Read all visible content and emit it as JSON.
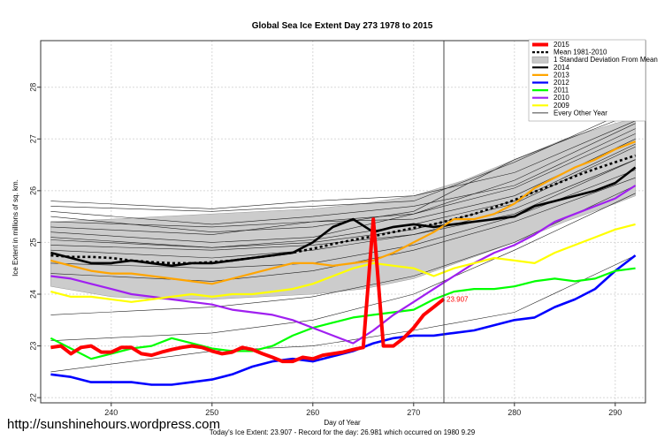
{
  "chart_data": {
    "type": "line",
    "title": "Global Sea Ice Extent Day 273 1978 to 2015",
    "xlabel": "Day of Year",
    "ylabel": "Ice Extent in millions of sq. km.",
    "xlim": [
      233,
      293
    ],
    "ylim": [
      21.9,
      28.9
    ],
    "xticks": [
      240,
      250,
      260,
      270,
      280,
      290
    ],
    "yticks": [
      22,
      23,
      24,
      25,
      26,
      27,
      28
    ],
    "grid": true,
    "legend_position": "top-right",
    "marker_day": 273,
    "annotation": "23.907",
    "caption": "Today's Ice Extent: 23.907  -  Record for the day: 26.981 which occurred on 1980 9.29",
    "watermark": "http://sunshinehours.wordpress.com",
    "legend": [
      {
        "label": "2015",
        "color": "#ff0000"
      },
      {
        "label": "Mean 1981-2010",
        "color": "#000000"
      },
      {
        "label": "1 Standard Deviation From Mean",
        "color": "#c8c8c8"
      },
      {
        "label": "2014",
        "color": "#000000"
      },
      {
        "label": "2013",
        "color": "#ffa500"
      },
      {
        "label": "2012",
        "color": "#0000ff"
      },
      {
        "label": "2011",
        "color": "#00ff00"
      },
      {
        "label": "2010",
        "color": "#a020f0"
      },
      {
        "label": "2009",
        "color": "#ffff00"
      },
      {
        "label": "Every Other Year",
        "color": "#000000"
      }
    ],
    "std_band": {
      "x": [
        234,
        240,
        245,
        250,
        255,
        260,
        265,
        270,
        275,
        280,
        285,
        290,
        292
      ],
      "upper": [
        25.4,
        25.45,
        25.5,
        25.55,
        25.6,
        25.65,
        25.75,
        25.9,
        26.2,
        26.6,
        27.0,
        27.3,
        27.4
      ],
      "lower": [
        24.15,
        23.95,
        23.9,
        23.9,
        23.95,
        24.0,
        24.1,
        24.3,
        24.65,
        25.0,
        25.4,
        25.75,
        25.9
      ]
    },
    "series": [
      {
        "name": "Mean 1981-2010",
        "color": "#000000",
        "style": "dotted",
        "x": [
          234,
          236,
          238,
          240,
          242,
          244,
          246,
          248,
          250,
          252,
          254,
          256,
          258,
          260,
          262,
          264,
          266,
          268,
          270,
          272,
          274,
          276,
          278,
          280,
          282,
          284,
          286,
          288,
          290,
          292
        ],
        "y": [
          24.75,
          24.72,
          24.72,
          24.7,
          24.65,
          24.62,
          24.6,
          24.6,
          24.62,
          24.65,
          24.7,
          24.75,
          24.8,
          24.88,
          24.97,
          25.05,
          25.12,
          25.2,
          25.28,
          25.35,
          25.45,
          25.55,
          25.68,
          25.82,
          25.98,
          26.12,
          26.28,
          26.42,
          26.55,
          26.68
        ]
      },
      {
        "name": "2014",
        "color": "#000000",
        "style": "solid",
        "x": [
          234,
          236,
          238,
          240,
          242,
          244,
          246,
          248,
          250,
          252,
          254,
          256,
          258,
          260,
          262,
          264,
          266,
          268,
          270,
          272,
          274,
          276,
          278,
          280,
          282,
          284,
          286,
          288,
          290,
          292
        ],
        "y": [
          24.8,
          24.7,
          24.6,
          24.6,
          24.65,
          24.6,
          24.55,
          24.6,
          24.6,
          24.65,
          24.7,
          24.75,
          24.8,
          25.0,
          25.3,
          25.45,
          25.2,
          25.3,
          25.35,
          25.3,
          25.35,
          25.4,
          25.45,
          25.5,
          25.7,
          25.8,
          25.9,
          26.0,
          26.15,
          26.45
        ]
      },
      {
        "name": "2013",
        "color": "#ffa500",
        "style": "solid",
        "x": [
          234,
          236,
          238,
          240,
          242,
          244,
          246,
          248,
          250,
          252,
          254,
          256,
          258,
          260,
          262,
          264,
          266,
          268,
          270,
          272,
          274,
          276,
          278,
          280,
          282,
          284,
          286,
          288,
          290,
          292
        ],
        "y": [
          24.65,
          24.55,
          24.45,
          24.4,
          24.4,
          24.35,
          24.3,
          24.25,
          24.2,
          24.3,
          24.4,
          24.5,
          24.6,
          24.6,
          24.55,
          24.6,
          24.65,
          24.8,
          25.0,
          25.2,
          25.45,
          25.45,
          25.55,
          25.75,
          26.05,
          26.25,
          26.45,
          26.6,
          26.8,
          26.95
        ]
      },
      {
        "name": "2012",
        "color": "#0000ff",
        "style": "solid",
        "x": [
          234,
          236,
          238,
          240,
          242,
          244,
          246,
          248,
          250,
          252,
          254,
          256,
          258,
          260,
          262,
          264,
          266,
          268,
          270,
          272,
          274,
          276,
          278,
          280,
          282,
          284,
          286,
          288,
          290,
          292
        ],
        "y": [
          22.45,
          22.4,
          22.3,
          22.3,
          22.3,
          22.25,
          22.25,
          22.3,
          22.35,
          22.45,
          22.6,
          22.7,
          22.75,
          22.7,
          22.8,
          22.9,
          23.05,
          23.15,
          23.2,
          23.2,
          23.25,
          23.3,
          23.4,
          23.5,
          23.55,
          23.75,
          23.9,
          24.1,
          24.45,
          24.75
        ]
      },
      {
        "name": "2011",
        "color": "#00ff00",
        "style": "solid",
        "x": [
          234,
          236,
          238,
          240,
          242,
          244,
          246,
          248,
          250,
          252,
          254,
          256,
          258,
          260,
          262,
          264,
          266,
          268,
          270,
          272,
          274,
          276,
          278,
          280,
          282,
          284,
          286,
          288,
          290,
          292
        ],
        "y": [
          23.15,
          22.95,
          22.75,
          22.85,
          22.95,
          23.0,
          23.15,
          23.05,
          22.95,
          22.9,
          22.9,
          23.0,
          23.2,
          23.35,
          23.45,
          23.55,
          23.6,
          23.65,
          23.7,
          23.9,
          24.05,
          24.1,
          24.1,
          24.15,
          24.25,
          24.3,
          24.25,
          24.3,
          24.45,
          24.5
        ]
      },
      {
        "name": "2010",
        "color": "#a020f0",
        "style": "solid",
        "x": [
          234,
          236,
          238,
          240,
          242,
          244,
          246,
          248,
          250,
          252,
          254,
          256,
          258,
          260,
          262,
          264,
          266,
          268,
          270,
          272,
          274,
          276,
          278,
          280,
          282,
          284,
          286,
          288,
          290,
          292
        ],
        "y": [
          24.35,
          24.3,
          24.2,
          24.1,
          24.0,
          23.95,
          23.9,
          23.85,
          23.8,
          23.7,
          23.65,
          23.6,
          23.5,
          23.35,
          23.2,
          23.05,
          23.3,
          23.6,
          23.85,
          24.1,
          24.35,
          24.6,
          24.8,
          24.95,
          25.15,
          25.4,
          25.55,
          25.7,
          25.85,
          26.1
        ]
      },
      {
        "name": "2009",
        "color": "#ffff00",
        "style": "solid",
        "x": [
          234,
          236,
          238,
          240,
          242,
          244,
          246,
          248,
          250,
          252,
          254,
          256,
          258,
          260,
          262,
          264,
          266,
          268,
          270,
          272,
          274,
          276,
          278,
          280,
          282,
          284,
          286,
          288,
          290,
          292
        ],
        "y": [
          24.05,
          23.95,
          23.95,
          23.9,
          23.85,
          23.9,
          23.95,
          24.0,
          23.95,
          24.0,
          24.0,
          24.05,
          24.1,
          24.2,
          24.35,
          24.5,
          24.6,
          24.55,
          24.5,
          24.35,
          24.5,
          24.6,
          24.7,
          24.65,
          24.6,
          24.8,
          24.95,
          25.1,
          25.25,
          25.35
        ]
      },
      {
        "name": "2015",
        "color": "#ff0000",
        "style": "solid",
        "x": [
          234,
          235,
          236,
          237,
          238,
          239,
          240,
          241,
          242,
          243,
          244,
          245,
          246,
          247,
          248,
          249,
          250,
          251,
          252,
          253,
          254,
          255,
          256,
          257,
          258,
          259,
          260,
          261,
          262,
          263,
          264,
          265,
          266,
          267,
          268,
          269,
          270,
          271,
          272,
          273
        ],
        "y": [
          22.97,
          23.0,
          22.85,
          22.97,
          23.0,
          22.88,
          22.88,
          22.97,
          22.97,
          22.85,
          22.82,
          22.88,
          22.93,
          22.97,
          23.0,
          22.97,
          22.9,
          22.85,
          22.88,
          22.97,
          22.93,
          22.85,
          22.78,
          22.7,
          22.7,
          22.78,
          22.75,
          22.82,
          22.85,
          22.88,
          22.93,
          22.97,
          25.45,
          23.0,
          23.0,
          23.15,
          23.35,
          23.6,
          23.75,
          23.907
        ]
      }
    ],
    "other_years": [
      {
        "x": [
          234,
          250,
          260,
          270,
          280,
          292
        ],
        "y": [
          25.8,
          25.65,
          25.8,
          25.9,
          26.35,
          27.35
        ]
      },
      {
        "x": [
          234,
          250,
          260,
          270,
          280,
          292
        ],
        "y": [
          25.7,
          25.6,
          25.7,
          25.8,
          26.55,
          27.6
        ]
      },
      {
        "x": [
          234,
          250,
          260,
          270,
          280,
          292
        ],
        "y": [
          25.6,
          25.35,
          25.5,
          25.7,
          26.1,
          27.2
        ]
      },
      {
        "x": [
          234,
          250,
          260,
          270,
          280,
          292
        ],
        "y": [
          25.5,
          25.2,
          25.3,
          25.6,
          26.6,
          27.5
        ]
      },
      {
        "x": [
          234,
          250,
          260,
          270,
          280,
          292
        ],
        "y": [
          25.3,
          25.15,
          25.4,
          25.45,
          25.9,
          27.0
        ]
      },
      {
        "x": [
          234,
          250,
          260,
          270,
          280,
          292
        ],
        "y": [
          25.2,
          25.0,
          25.1,
          25.55,
          26.2,
          27.3
        ]
      },
      {
        "x": [
          234,
          250,
          260,
          270,
          280,
          292
        ],
        "y": [
          25.1,
          24.9,
          25.0,
          25.25,
          25.75,
          26.85
        ]
      },
      {
        "x": [
          234,
          250,
          260,
          270,
          280,
          292
        ],
        "y": [
          24.95,
          24.85,
          24.95,
          25.15,
          25.65,
          26.6
        ]
      },
      {
        "x": [
          234,
          250,
          260,
          270,
          280,
          292
        ],
        "y": [
          24.85,
          24.7,
          24.85,
          25.15,
          25.55,
          26.6
        ]
      },
      {
        "x": [
          234,
          250,
          260,
          270,
          280,
          292
        ],
        "y": [
          24.6,
          24.5,
          24.6,
          24.95,
          25.5,
          26.4
        ]
      },
      {
        "x": [
          234,
          250,
          260,
          270,
          280,
          292
        ],
        "y": [
          24.4,
          24.25,
          24.45,
          24.85,
          25.4,
          26.25
        ]
      },
      {
        "x": [
          234,
          250,
          260,
          270,
          280,
          292
        ],
        "y": [
          23.6,
          23.75,
          23.95,
          24.35,
          25.0,
          26.1
        ]
      },
      {
        "x": [
          234,
          250,
          260,
          270,
          280,
          292
        ],
        "y": [
          23.1,
          23.25,
          23.5,
          24.0,
          24.85,
          25.95
        ]
      },
      {
        "x": [
          234,
          250,
          260,
          270,
          280,
          292
        ],
        "y": [
          22.5,
          22.9,
          23.0,
          23.3,
          23.65,
          24.75
        ]
      },
      {
        "x": [
          234,
          250,
          260,
          270,
          280,
          292
        ],
        "y": [
          25.4,
          25.3,
          25.4,
          25.55,
          26.05,
          27.1
        ]
      },
      {
        "x": [
          234,
          250,
          260,
          270,
          280,
          292
        ],
        "y": [
          25.05,
          24.9,
          25.05,
          25.35,
          25.8,
          26.9
        ]
      }
    ]
  }
}
